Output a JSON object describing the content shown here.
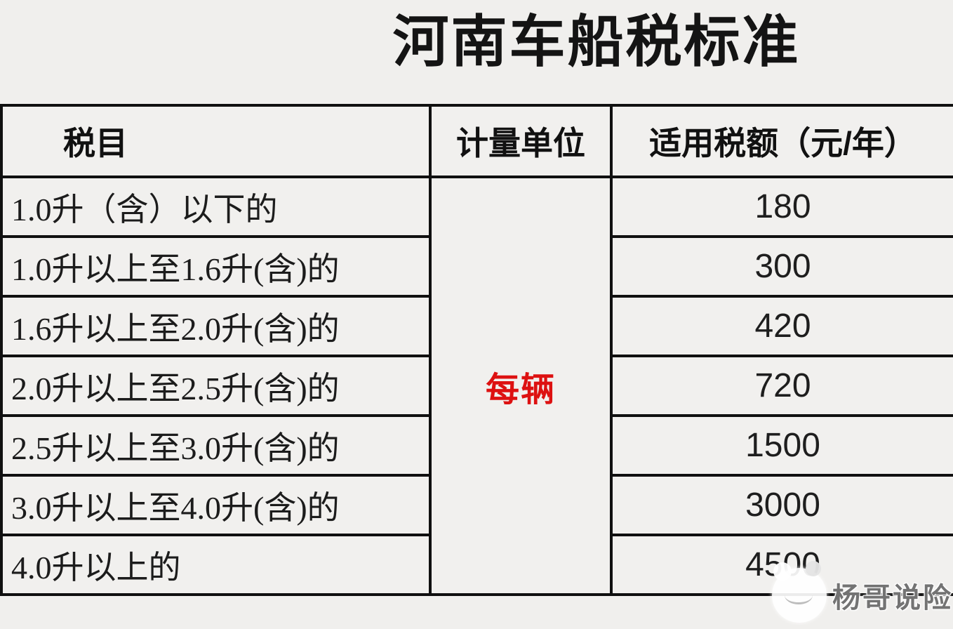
{
  "page": {
    "title": "河南车船税标准"
  },
  "table": {
    "headers": {
      "item": "税目",
      "unit": "计量单位",
      "amount": "适用税额（元/年）"
    },
    "unit_value": "每辆",
    "rows": [
      {
        "item": "1.0升（含）以下的",
        "amount": "180"
      },
      {
        "item": "1.0升以上至1.6升(含)的",
        "amount": "300"
      },
      {
        "item": "1.6升以上至2.0升(含)的",
        "amount": "420"
      },
      {
        "item": "2.0升以上至2.5升(含)的",
        "amount": "720"
      },
      {
        "item": "2.5升以上至3.0升(含)的",
        "amount": "1500"
      },
      {
        "item": "3.0升以上至4.0升(含)的",
        "amount": "3000"
      },
      {
        "item": "4.0升以上的",
        "amount": "4500"
      }
    ]
  },
  "watermark": {
    "text": "杨哥说险"
  },
  "colors": {
    "background": "#f0efed",
    "border": "#101010",
    "text": "#1c1c1c",
    "unit_red": "#dd1111",
    "watermark_gray": "#606060"
  }
}
